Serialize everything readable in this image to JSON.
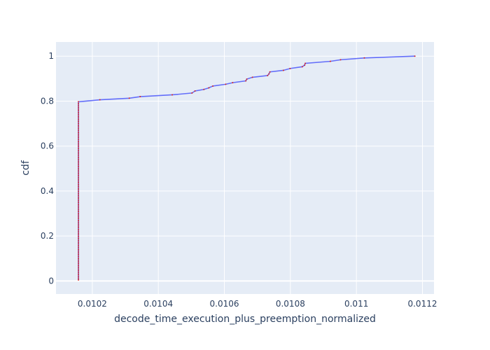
{
  "chart_data": {
    "type": "line",
    "title": "",
    "xlabel": "decode_time_execution_plus_preemption_normalized",
    "ylabel": "cdf",
    "xlim": [
      0.01009,
      0.011235
    ],
    "ylim": [
      -0.058,
      1.063
    ],
    "x_ticks": [
      {
        "value": 0.0102,
        "label": "0.0102"
      },
      {
        "value": 0.0104,
        "label": "0.0104"
      },
      {
        "value": 0.0106,
        "label": "0.0106"
      },
      {
        "value": 0.0108,
        "label": "0.0108"
      },
      {
        "value": 0.011,
        "label": "0.011"
      },
      {
        "value": 0.0112,
        "label": "0.0112"
      }
    ],
    "y_ticks": [
      {
        "value": 0,
        "label": "0"
      },
      {
        "value": 0.2,
        "label": "0.2"
      },
      {
        "value": 0.4,
        "label": "0.4"
      },
      {
        "value": 0.6,
        "label": "0.6"
      },
      {
        "value": 0.8,
        "label": "0.8"
      },
      {
        "value": 1,
        "label": "1"
      }
    ],
    "grid": true,
    "legend": "none",
    "colors": {
      "plot_background": "#e5ecf6",
      "grid": "#ffffff",
      "line": "#636efa",
      "marker": "#d62728",
      "text": "#2a3f5f"
    },
    "series": [
      {
        "x": [
          0.010158,
          0.010158,
          0.010223,
          0.010312,
          0.010345,
          0.010442,
          0.010502,
          0.010511,
          0.010538,
          0.010553,
          0.010565,
          0.010604,
          0.010625,
          0.010665,
          0.010668,
          0.010685,
          0.010731,
          0.010735,
          0.010738,
          0.010779,
          0.010799,
          0.010836,
          0.010843,
          0.010845,
          0.010921,
          0.010952,
          0.011024,
          0.011177
        ],
        "y": [
          0.005,
          0.797,
          0.806,
          0.813,
          0.82,
          0.828,
          0.836,
          0.845,
          0.852,
          0.859,
          0.867,
          0.875,
          0.882,
          0.89,
          0.898,
          0.906,
          0.914,
          0.921,
          0.93,
          0.937,
          0.945,
          0.953,
          0.96,
          0.968,
          0.977,
          0.984,
          0.992,
          1.0
        ]
      }
    ]
  }
}
